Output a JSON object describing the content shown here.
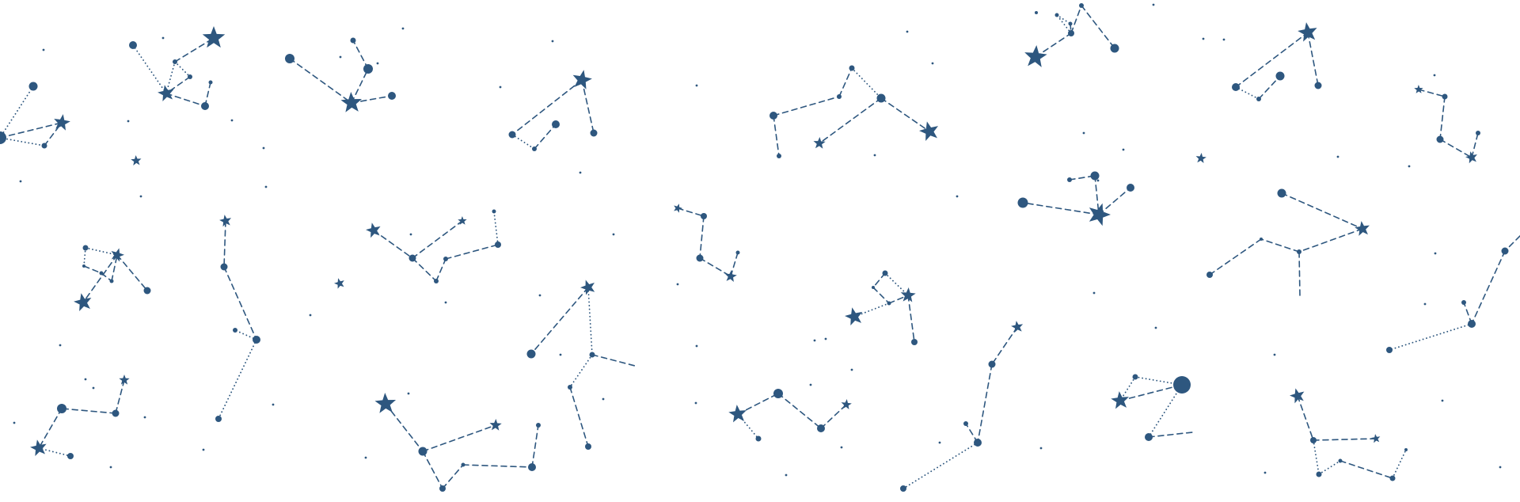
{
  "colors": {
    "background": "#ffffff",
    "ink": "#2e577f"
  },
  "pattern": "constellation-pattern"
}
